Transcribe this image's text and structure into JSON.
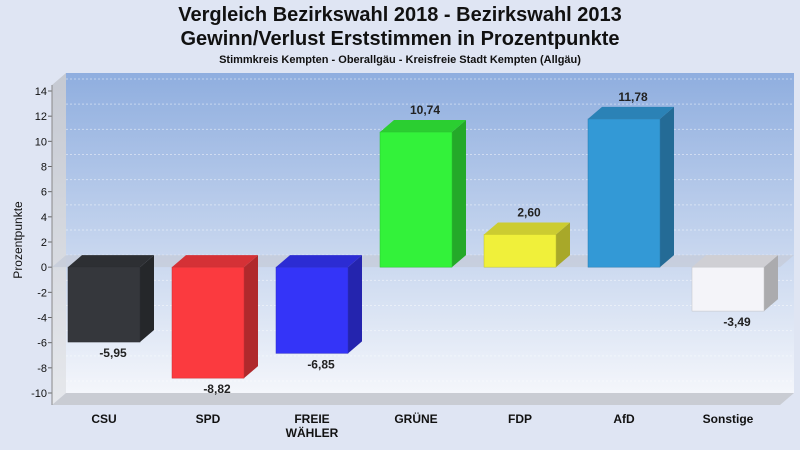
{
  "header": {
    "title_line1": "Vergleich Bezirkswahl 2018 - Bezirkswahl 2013",
    "title_line2": "Gewinn/Verlust Erststimmen in Prozentpunkte",
    "subtitle": "Stimmkreis Kempten - Oberallgäu - Kreisfreie Stadt Kempten (Allgäu)"
  },
  "chart_data": {
    "type": "bar",
    "title": "Vergleich Bezirkswahl 2018 - Bezirkswahl 2013 / Gewinn/Verlust Erststimmen in Prozentpunkte",
    "subtitle": "Stimmkreis Kempten - Oberallgäu - Kreisfreie Stadt Kempten (Allgäu)",
    "ylabel": "Prozentpunkte",
    "xlabel": "",
    "ylim": [
      -10,
      14
    ],
    "yticks": [
      14,
      12,
      10,
      8,
      6,
      4,
      2,
      0,
      -2,
      -4,
      -6,
      -8,
      -10
    ],
    "categories": [
      {
        "lines": [
          "CSU"
        ]
      },
      {
        "lines": [
          "SPD"
        ]
      },
      {
        "lines": [
          "FREIE",
          "WÄHLER"
        ]
      },
      {
        "lines": [
          "GRÜNE"
        ]
      },
      {
        "lines": [
          "FDP"
        ]
      },
      {
        "lines": [
          "AfD"
        ]
      },
      {
        "lines": [
          "Sonstige"
        ]
      }
    ],
    "values": [
      -5.95,
      -8.82,
      -6.85,
      10.74,
      2.6,
      11.78,
      -3.49
    ],
    "value_labels": [
      "-5,95",
      "-8,82",
      "-6,85",
      "10,74",
      "2,60",
      "11,78",
      "-3,49"
    ],
    "colors": [
      "#35373c",
      "#fb3a3f",
      "#3434f8",
      "#33f23a",
      "#f0f03a",
      "#3399d6",
      "#f4f4f9"
    ],
    "grid": true,
    "legend": "none"
  }
}
